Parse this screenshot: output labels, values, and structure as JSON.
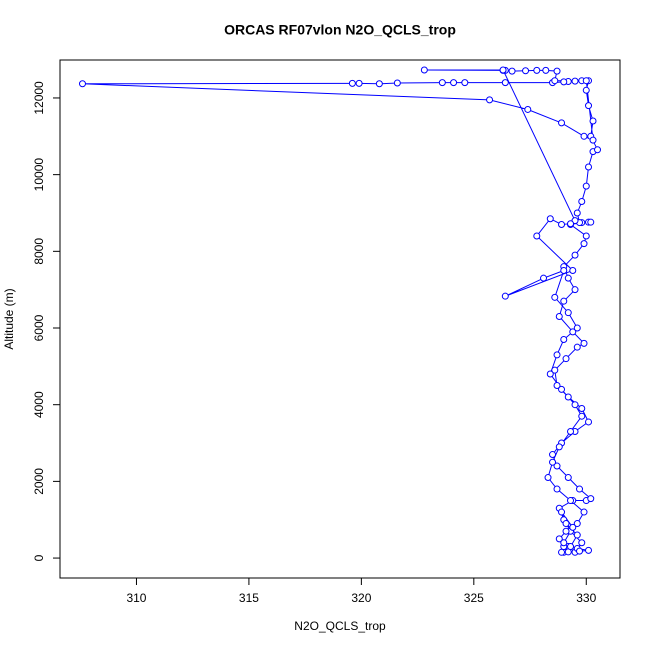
{
  "chart_data": {
    "type": "scatter",
    "title": "ORCAS RF07vlon N2O_QCLS_trop",
    "xlabel": "N2O_QCLS_trop",
    "ylabel": "Altitude (m)",
    "color": "#0000ff",
    "xlim": [
      306.6,
      331.5
    ],
    "ylim": [
      -520,
      12990
    ],
    "xticks": [
      310,
      315,
      320,
      325,
      330
    ],
    "yticks": [
      0,
      2000,
      4000,
      6000,
      8000,
      10000,
      12000
    ],
    "x": [
      329.0,
      329.2,
      329.5,
      329.8,
      329.3,
      329.0,
      328.8,
      329.4,
      330.0,
      330.2,
      329.7,
      329.2,
      328.7,
      328.5,
      328.9,
      329.5,
      330.1,
      329.8,
      329.2,
      328.7,
      328.6,
      329.1,
      329.6,
      329.9,
      329.4,
      328.8,
      329.0,
      329.5,
      329.2,
      329.0,
      329.5,
      329.9,
      330.0,
      329.3,
      329.8,
      330.1,
      330.2,
      329.7,
      329.6,
      329.8,
      330.0,
      330.1,
      330.3,
      330.5,
      330.2,
      330.3,
      330.1,
      330.0,
      330.1,
      329.8,
      329.5,
      329.2,
      329.0,
      328.5,
      326.4,
      324.6,
      324.1,
      323.6,
      321.6,
      320.8,
      319.9,
      319.6,
      307.6,
      325.7,
      327.4,
      328.9,
      329.9,
      330.3,
      330.0,
      328.6,
      328.7,
      328.2,
      327.8,
      327.3,
      326.7,
      326.4,
      326.3,
      322.8,
      326.3,
      329.5,
      329.3,
      328.9,
      328.4,
      327.8,
      329.4,
      326.4,
      328.1,
      329.0,
      328.6,
      329.2,
      329.6,
      329.0,
      328.7,
      328.4,
      328.9,
      329.5,
      329.8,
      329.3,
      328.8,
      328.5,
      328.3,
      328.7,
      329.3,
      329.9,
      329.6,
      329.1,
      328.8,
      329.0,
      329.6,
      330.1,
      329.7,
      329.2,
      328.9,
      329.3,
      329.6,
      329.1,
      328.9,
      329.4,
      329.0
    ],
    "values": [
      150,
      300,
      150,
      400,
      700,
      1000,
      1300,
      1500,
      1500,
      1550,
      1800,
      2100,
      2400,
      2700,
      3000,
      3300,
      3550,
      3900,
      4200,
      4500,
      4900,
      5200,
      5500,
      5600,
      5900,
      6300,
      6700,
      7000,
      7300,
      7600,
      7900,
      8200,
      8400,
      8700,
      8750,
      8760,
      8760,
      8750,
      9000,
      9300,
      9700,
      10200,
      10600,
      10650,
      11000,
      11400,
      11800,
      12200,
      12450,
      12450,
      12440,
      12430,
      12420,
      12400,
      12400,
      12400,
      12400,
      12400,
      12390,
      12370,
      12380,
      12380,
      12370,
      11950,
      11700,
      11350,
      11000,
      10900,
      12450,
      12450,
      12700,
      12720,
      12720,
      12710,
      12700,
      12720,
      12720,
      12730,
      12730,
      8800,
      8720,
      8700,
      8850,
      8400,
      7500,
      6830,
      7300,
      7500,
      6800,
      6400,
      6000,
      5700,
      5300,
      4800,
      4400,
      4000,
      3700,
      3300,
      2900,
      2500,
      2100,
      1800,
      1500,
      1200,
      900,
      700,
      500,
      300,
      250,
      200,
      180,
      160,
      150,
      300,
      600,
      900,
      1200,
      800,
      400
    ]
  }
}
